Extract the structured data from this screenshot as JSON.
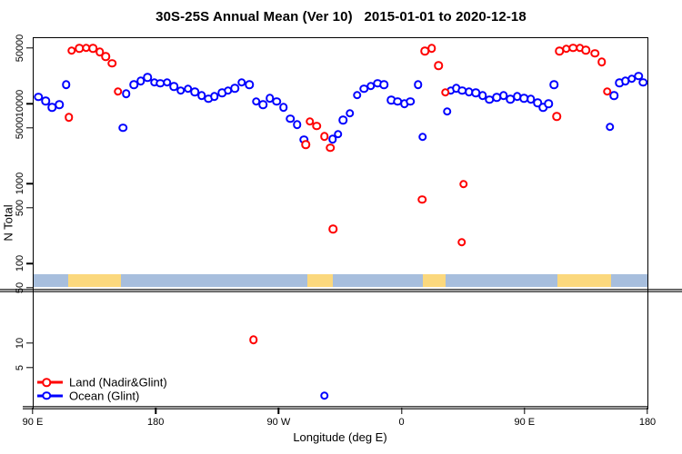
{
  "chart_data": {
    "type": "scatter",
    "title": "30S-25S Annual Mean (Ver 10)   2015-01-01 to 2020-12-18",
    "xlabel": "Longitude (deg E)",
    "ylabel": "N Total",
    "y_axis": {
      "scale": "log",
      "ticks": [
        50000,
        10000,
        5000,
        1000,
        500,
        100,
        50,
        10,
        5
      ],
      "tick_labels": [
        "50000",
        "10000",
        "5000",
        "1000",
        "500",
        "100",
        "50",
        "10",
        "5"
      ]
    },
    "x_axis": {
      "range_deg_east": [
        90,
        540
      ],
      "ticks": [
        {
          "lon": 90,
          "label": "90 E"
        },
        {
          "lon": 180,
          "label": "180"
        },
        {
          "lon": 270,
          "label": "90 W"
        },
        {
          "lon": 360,
          "label": "0"
        },
        {
          "lon": 450,
          "label": "90 E"
        },
        {
          "lon": 540,
          "label": "180"
        }
      ]
    },
    "land_ocean_band": {
      "ocean_color": "#a7bedd",
      "land_color": "#fbd87d",
      "land_segments_deg_east": [
        [
          116,
          154.5
        ],
        [
          291,
          310
        ],
        [
          375.5,
          392
        ],
        [
          474,
          513.5
        ]
      ]
    },
    "series": [
      {
        "name": "Ocean (Glint)",
        "color": "#0000ff",
        "points": [
          [
            94,
            12200
          ],
          [
            99.5,
            10800
          ],
          [
            104,
            9000
          ],
          [
            109.5,
            9800
          ],
          [
            114.5,
            17400
          ],
          [
            156,
            5000
          ],
          [
            158.5,
            13400
          ],
          [
            164,
            17400
          ],
          [
            169,
            19300
          ],
          [
            174,
            21600
          ],
          [
            179,
            18600
          ],
          [
            183.5,
            18200
          ],
          [
            188.5,
            18600
          ],
          [
            193.5,
            16500
          ],
          [
            198.5,
            14700
          ],
          [
            203.5,
            15400
          ],
          [
            208.5,
            14100
          ],
          [
            213.5,
            12700
          ],
          [
            218.5,
            11600
          ],
          [
            223,
            12300
          ],
          [
            228.5,
            13800
          ],
          [
            233,
            14700
          ],
          [
            238,
            15600
          ],
          [
            243,
            18500
          ],
          [
            248.5,
            17400
          ],
          [
            253.5,
            10700
          ],
          [
            258.5,
            9800
          ],
          [
            263.5,
            11700
          ],
          [
            268.5,
            10700
          ],
          [
            273.5,
            9100
          ],
          [
            278.5,
            6500
          ],
          [
            283.5,
            5500
          ],
          [
            288.5,
            3550
          ],
          [
            303.5,
            2.2
          ],
          [
            309.5,
            3600
          ],
          [
            313.5,
            4200
          ],
          [
            317,
            6300
          ],
          [
            322,
            7600
          ],
          [
            327.5,
            12800
          ],
          [
            332.5,
            15500
          ],
          [
            337.5,
            16700
          ],
          [
            342.5,
            18100
          ],
          [
            347,
            17400
          ],
          [
            352.5,
            11200
          ],
          [
            357,
            10700
          ],
          [
            362,
            10100
          ],
          [
            366.5,
            10700
          ],
          [
            372,
            17400
          ],
          [
            375.5,
            3850
          ],
          [
            393.5,
            8000
          ],
          [
            396,
            14700
          ],
          [
            400,
            15600
          ],
          [
            404.5,
            14700
          ],
          [
            409.5,
            14100
          ],
          [
            414.5,
            13800
          ],
          [
            419.5,
            12700
          ],
          [
            424.5,
            11300
          ],
          [
            429.5,
            12100
          ],
          [
            434.5,
            12700
          ],
          [
            439.5,
            11500
          ],
          [
            444.5,
            12300
          ],
          [
            449.5,
            11700
          ],
          [
            454.5,
            11500
          ],
          [
            459.5,
            10300
          ],
          [
            463.5,
            9100
          ],
          [
            467.5,
            10000
          ],
          [
            471.5,
            17500
          ],
          [
            512.5,
            5150
          ],
          [
            515.5,
            12700
          ],
          [
            519.5,
            18300
          ],
          [
            524,
            19400
          ],
          [
            528.5,
            20500
          ],
          [
            533.5,
            22200
          ],
          [
            537,
            18600
          ]
        ]
      },
      {
        "name": "Land (Nadir&Glint)",
        "color": "#ff0000",
        "points": [
          [
            116.5,
            6800
          ],
          [
            118.5,
            46500
          ],
          [
            124,
            49500
          ],
          [
            129,
            50500
          ],
          [
            134,
            49500
          ],
          [
            139,
            44500
          ],
          [
            143.5,
            39000
          ],
          [
            148,
            32000
          ],
          [
            152.5,
            14300
          ],
          [
            251.5,
            11
          ],
          [
            290,
            3100
          ],
          [
            293,
            6000
          ],
          [
            298,
            5300
          ],
          [
            303.5,
            3900
          ],
          [
            308,
            2800
          ],
          [
            310,
            270
          ],
          [
            375,
            630
          ],
          [
            377,
            46000
          ],
          [
            382,
            49500
          ],
          [
            387,
            30000
          ],
          [
            392,
            13900
          ],
          [
            404,
            185
          ],
          [
            405.5,
            990
          ],
          [
            473.5,
            7000
          ],
          [
            475.5,
            46000
          ],
          [
            480.5,
            48800
          ],
          [
            485.5,
            50500
          ],
          [
            490.5,
            50500
          ],
          [
            495,
            47000
          ],
          [
            501.5,
            43000
          ],
          [
            506.5,
            33500
          ],
          [
            510.5,
            14300
          ]
        ]
      }
    ],
    "legend": {
      "position": "bottom-left",
      "entries": [
        "Land (Nadir&Glint)",
        "Ocean (Glint)"
      ]
    }
  }
}
